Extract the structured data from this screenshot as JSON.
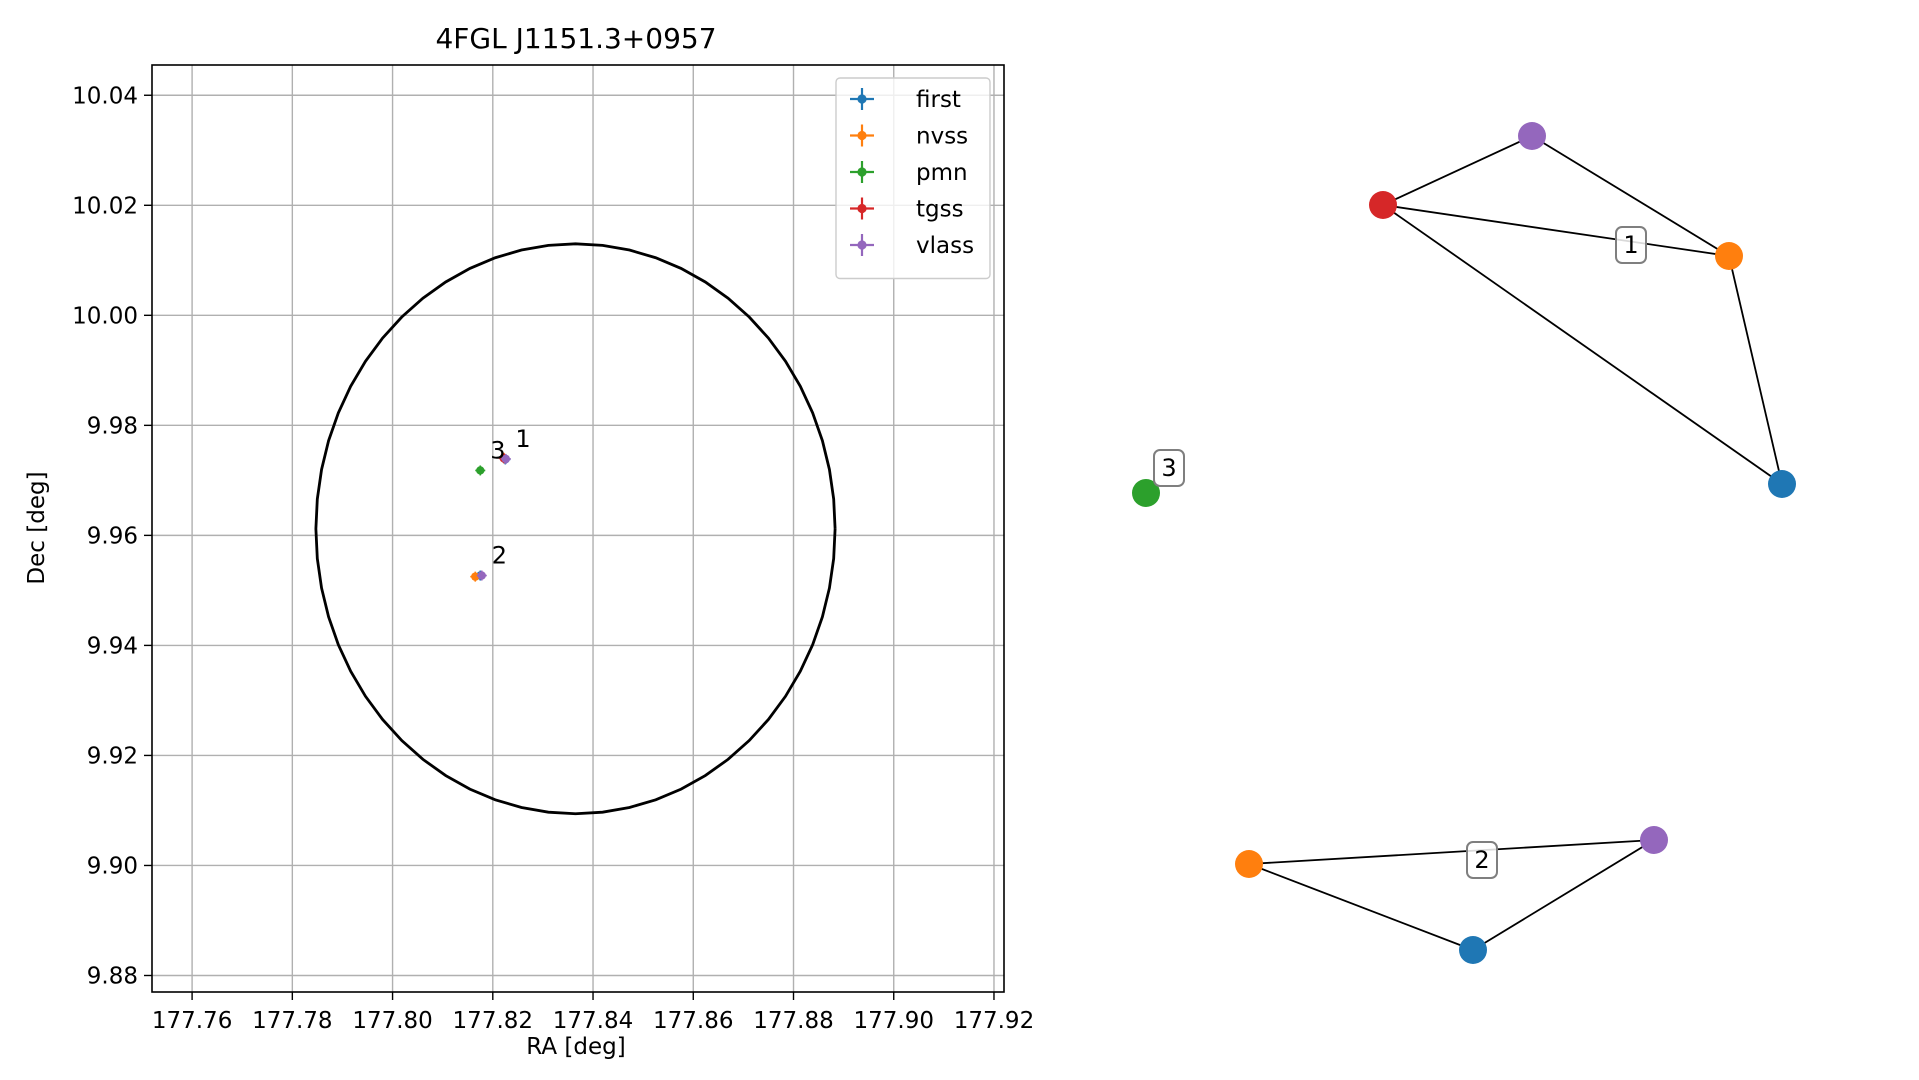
{
  "chart_data": [
    {
      "type": "scatter",
      "title": "4FGL J1151.3+0957",
      "xlabel": "RA [deg]",
      "ylabel": "Dec [deg]",
      "xlim": [
        177.752,
        177.922
      ],
      "ylim": [
        9.877,
        10.0455
      ],
      "x_ticks": [
        "177.76",
        "177.78",
        "177.80",
        "177.82",
        "177.84",
        "177.86",
        "177.88",
        "177.90",
        "177.92"
      ],
      "y_ticks": [
        "9.88",
        "9.90",
        "9.92",
        "9.94",
        "9.96",
        "9.98",
        "10.00",
        "10.02",
        "10.04"
      ],
      "grid": true,
      "legend_position": "top-right",
      "legend": [
        {
          "name": "first",
          "color": "#1f77b4"
        },
        {
          "name": "nvss",
          "color": "#ff7f0e"
        },
        {
          "name": "pmn",
          "color": "#2ca02c"
        },
        {
          "name": "tgss",
          "color": "#d62728"
        },
        {
          "name": "vlass",
          "color": "#9467bd"
        }
      ],
      "series": [
        {
          "name": "first",
          "color": "#1f77b4",
          "points": [
            {
              "x": 177.8225,
              "y": 9.9738
            },
            {
              "x": 177.8175,
              "y": 9.9527
            }
          ]
        },
        {
          "name": "nvss",
          "color": "#ff7f0e",
          "points": [
            {
              "x": 177.8222,
              "y": 9.9741
            },
            {
              "x": 177.8165,
              "y": 9.9525
            }
          ]
        },
        {
          "name": "pmn",
          "color": "#2ca02c",
          "points": [
            {
              "x": 177.8175,
              "y": 9.9718
            }
          ]
        },
        {
          "name": "tgss",
          "color": "#d62728",
          "points": [
            {
              "x": 177.8222,
              "y": 9.974
            }
          ]
        },
        {
          "name": "vlass",
          "color": "#9467bd",
          "points": [
            {
              "x": 177.8226,
              "y": 9.9739
            },
            {
              "x": 177.8178,
              "y": 9.9527
            }
          ]
        }
      ],
      "circle": {
        "center_x": 177.8365,
        "center_y": 9.9612,
        "radius_deg": 0.0518,
        "color": "#000000"
      },
      "annotations": [
        {
          "text": "1",
          "x": 177.8225,
          "y": 9.9739
        },
        {
          "text": "2",
          "x": 177.8178,
          "y": 9.9527
        },
        {
          "text": "3",
          "x": 177.8175,
          "y": 9.9718
        }
      ]
    },
    {
      "type": "network",
      "groups": [
        {
          "label": "1",
          "nodes": [
            {
              "name": "tgss",
              "color": "#d62728"
            },
            {
              "name": "vlass",
              "color": "#9467bd"
            },
            {
              "name": "nvss",
              "color": "#ff7f0e"
            },
            {
              "name": "first",
              "color": "#1f77b4"
            }
          ],
          "edges": [
            [
              "tgss",
              "vlass"
            ],
            [
              "vlass",
              "nvss"
            ],
            [
              "tgss",
              "nvss"
            ],
            [
              "tgss",
              "first"
            ],
            [
              "nvss",
              "first"
            ]
          ]
        },
        {
          "label": "2",
          "nodes": [
            {
              "name": "nvss",
              "color": "#ff7f0e"
            },
            {
              "name": "first",
              "color": "#1f77b4"
            },
            {
              "name": "vlass",
              "color": "#9467bd"
            }
          ],
          "edges": [
            [
              "nvss",
              "vlass"
            ],
            [
              "nvss",
              "first"
            ],
            [
              "first",
              "vlass"
            ]
          ]
        },
        {
          "label": "3",
          "nodes": [
            {
              "name": "pmn",
              "color": "#2ca02c"
            }
          ],
          "edges": []
        }
      ]
    }
  ]
}
